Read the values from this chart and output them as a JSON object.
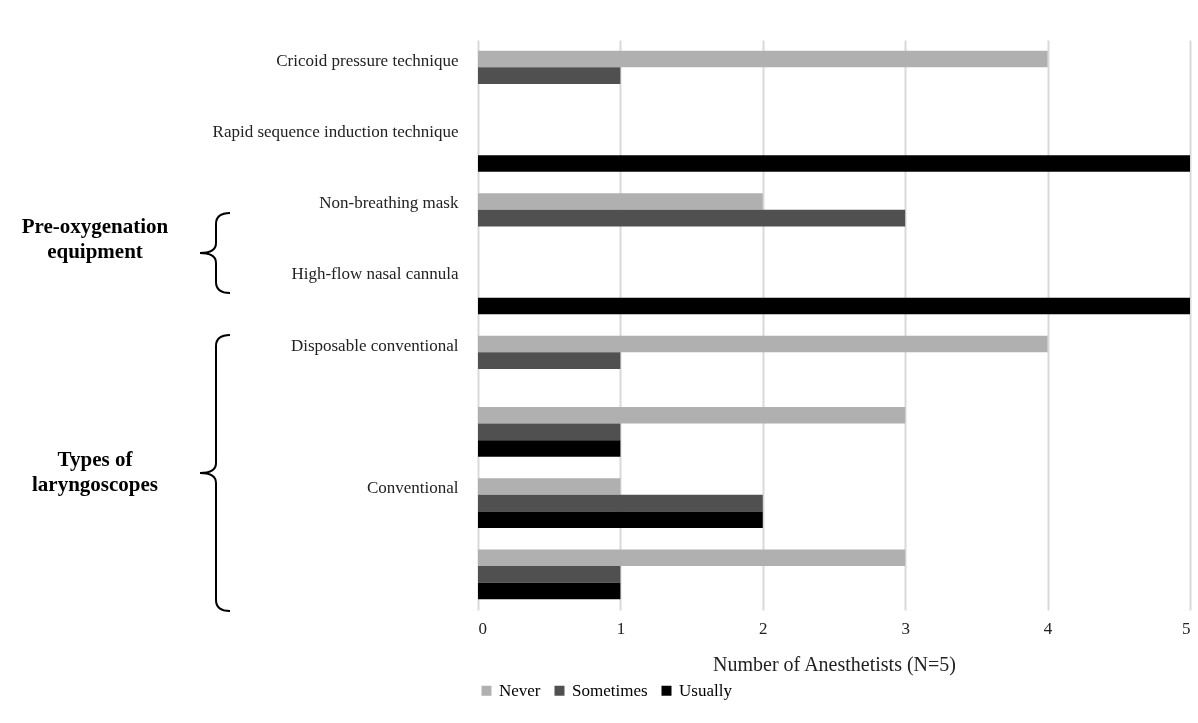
{
  "chart_data": {
    "type": "bar",
    "orientation": "horizontal",
    "categories": [
      "Cricoid pressure technique",
      "Rapid sequence induction technique",
      "Non-breathing mask",
      "High-flow nasal cannula",
      "Disposable conventional",
      null,
      "Conventional",
      null
    ],
    "series": [
      {
        "name": "Never",
        "color": "#b0b0b0",
        "values": [
          4,
          null,
          2,
          null,
          4,
          3,
          1,
          3
        ]
      },
      {
        "name": "Sometimes",
        "color": "#505050",
        "values": [
          1,
          null,
          3,
          null,
          1,
          1,
          2,
          1
        ]
      },
      {
        "name": "Usually",
        "color": "#000000",
        "values": [
          null,
          5,
          null,
          5,
          null,
          1,
          2,
          1
        ]
      }
    ],
    "xlabel": "Number of Anesthetists (N=5)",
    "xlim": [
      0,
      5
    ],
    "xticks": [
      0,
      1,
      2,
      3,
      4,
      5
    ],
    "grid": "x",
    "legend": "bottom",
    "annotations": [
      "Pre-oxygenation equipment",
      "Types of laryngoscopes"
    ]
  }
}
